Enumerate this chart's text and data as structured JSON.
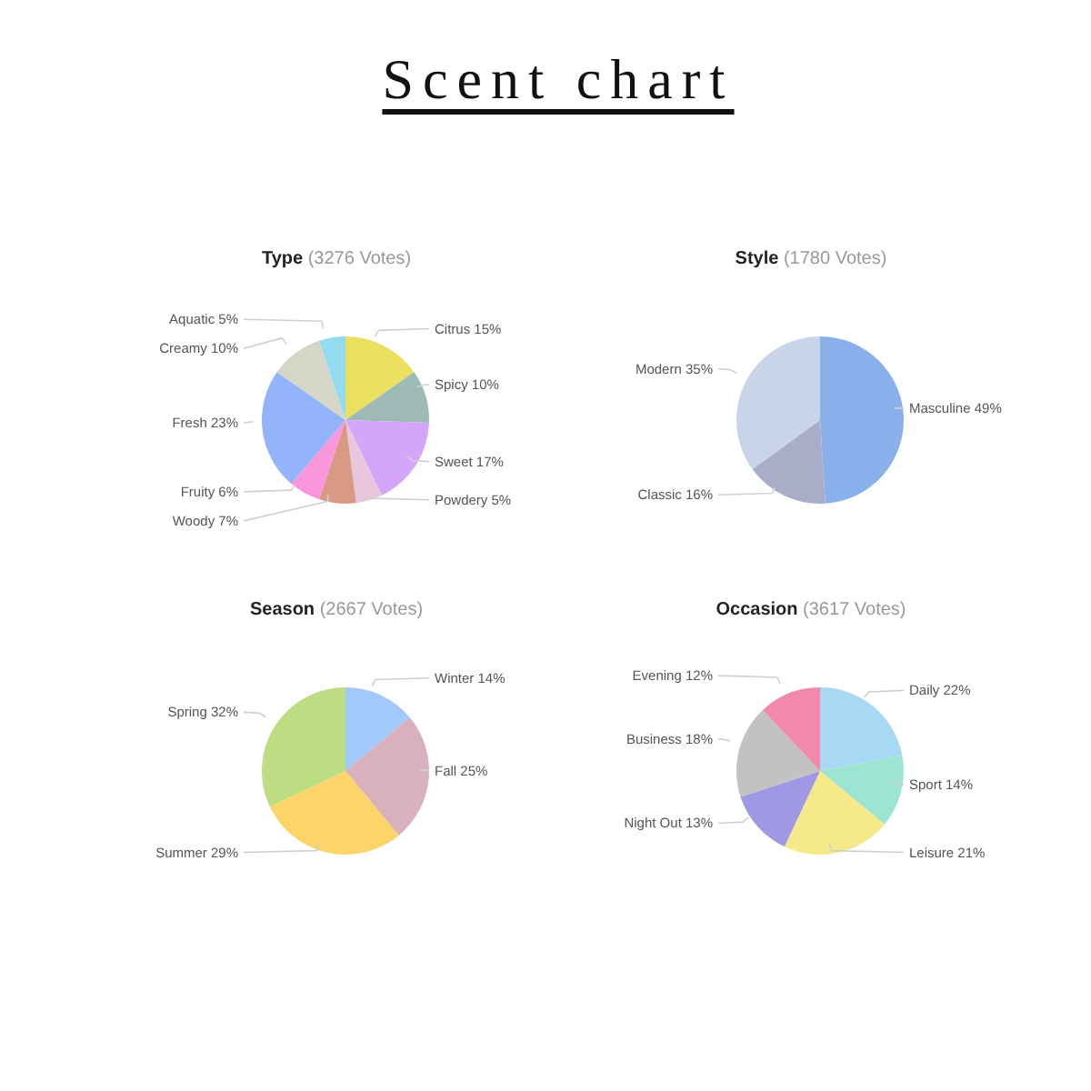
{
  "chart_data": [
    {
      "type": "other",
      "title": "Scent chart"
    },
    {
      "type": "pie",
      "title": "Type",
      "subtitle": "(3276 Votes)",
      "categories": [
        "Citrus",
        "Spicy",
        "Sweet",
        "Powdery",
        "Woody",
        "Fruity",
        "Fresh",
        "Creamy",
        "Aquatic"
      ],
      "values": [
        15,
        10,
        17,
        5,
        7,
        6,
        23,
        10,
        5
      ],
      "value_labels": [
        "15%",
        "10%",
        "17%",
        "5%",
        "7%",
        "6%",
        "23%",
        "10%",
        "5%"
      ],
      "colors": [
        "#ebe060",
        "#9dbab5",
        "#d3a6f9",
        "#e8c6dd",
        "#d89a87",
        "#f996dc",
        "#93b4fb",
        "#d6d6c8",
        "#93dbf0"
      ]
    },
    {
      "type": "pie",
      "title": "Style",
      "subtitle": "(1780 Votes)",
      "categories": [
        "Masculine",
        "Classic",
        "Modern"
      ],
      "values": [
        49,
        16,
        35
      ],
      "value_labels": [
        "49%",
        "16%",
        "35%"
      ],
      "colors": [
        "#8ab0ec",
        "#a9adc8",
        "#c9d4e8"
      ]
    },
    {
      "type": "pie",
      "title": "Season",
      "subtitle": "(2667 Votes)",
      "categories": [
        "Winter",
        "Fall",
        "Summer",
        "Spring"
      ],
      "values": [
        14,
        25,
        29,
        32
      ],
      "value_labels": [
        "14%",
        "25%",
        "29%",
        "32%"
      ],
      "colors": [
        "#a2c9fa",
        "#d8b1bd",
        "#fdd467",
        "#bddd82"
      ]
    },
    {
      "type": "pie",
      "title": "Occasion",
      "subtitle": "(3617 Votes)",
      "categories": [
        "Daily",
        "Sport",
        "Leisure",
        "Night Out",
        "Business",
        "Evening"
      ],
      "values": [
        22,
        14,
        21,
        13,
        18,
        12
      ],
      "value_labels": [
        "22%",
        "14%",
        "21%",
        "13%",
        "18%",
        "12%"
      ],
      "colors": [
        "#a7daf2",
        "#9ce5d3",
        "#f6e98a",
        "#a097e5",
        "#c2c2c2",
        "#f289ad"
      ]
    }
  ]
}
